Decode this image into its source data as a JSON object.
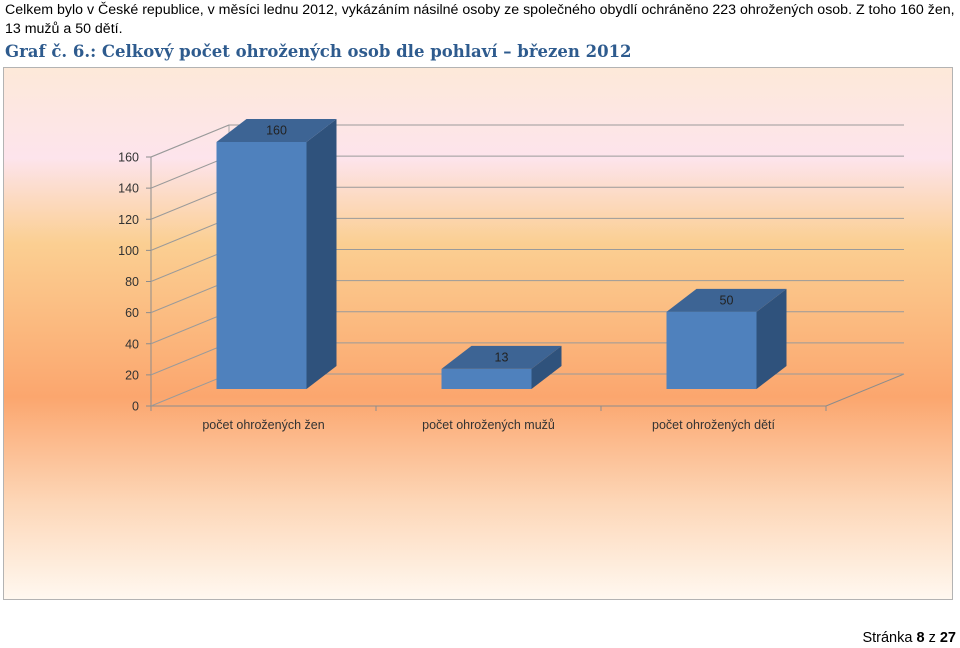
{
  "intro_text": "Celkem bylo v České republice, v měsíci lednu 2012, vykázáním násilné osoby ze společného obydlí ochráněno 223 ohrožených osob. Z toho 160 žen, 13 mužů a 50 dětí.",
  "caption": "Graf č. 6.: Celkový počet ohrožených osob dle pohlaví – březen 2012",
  "footer": {
    "prefix": "Stránka",
    "page": "8",
    "sep": "z",
    "total": "27"
  },
  "colors": {
    "bar_front": "#4f81bd",
    "bar_side": "#2f527c",
    "bar_top": "#3d6494",
    "caption": "#2e5b8e"
  },
  "chart_data": {
    "type": "bar",
    "categories": [
      "počet ohrožených žen",
      "počet ohrožených mužů",
      "počet ohrožených dětí"
    ],
    "values": [
      160,
      13,
      50
    ],
    "data_labels": [
      "160",
      "13",
      "50"
    ],
    "ylim": [
      0,
      160
    ],
    "yticks": [
      0,
      20,
      40,
      60,
      80,
      100,
      120,
      140,
      160
    ],
    "title": "",
    "xlabel": "",
    "ylabel": "",
    "grid": true,
    "legend": "none"
  }
}
